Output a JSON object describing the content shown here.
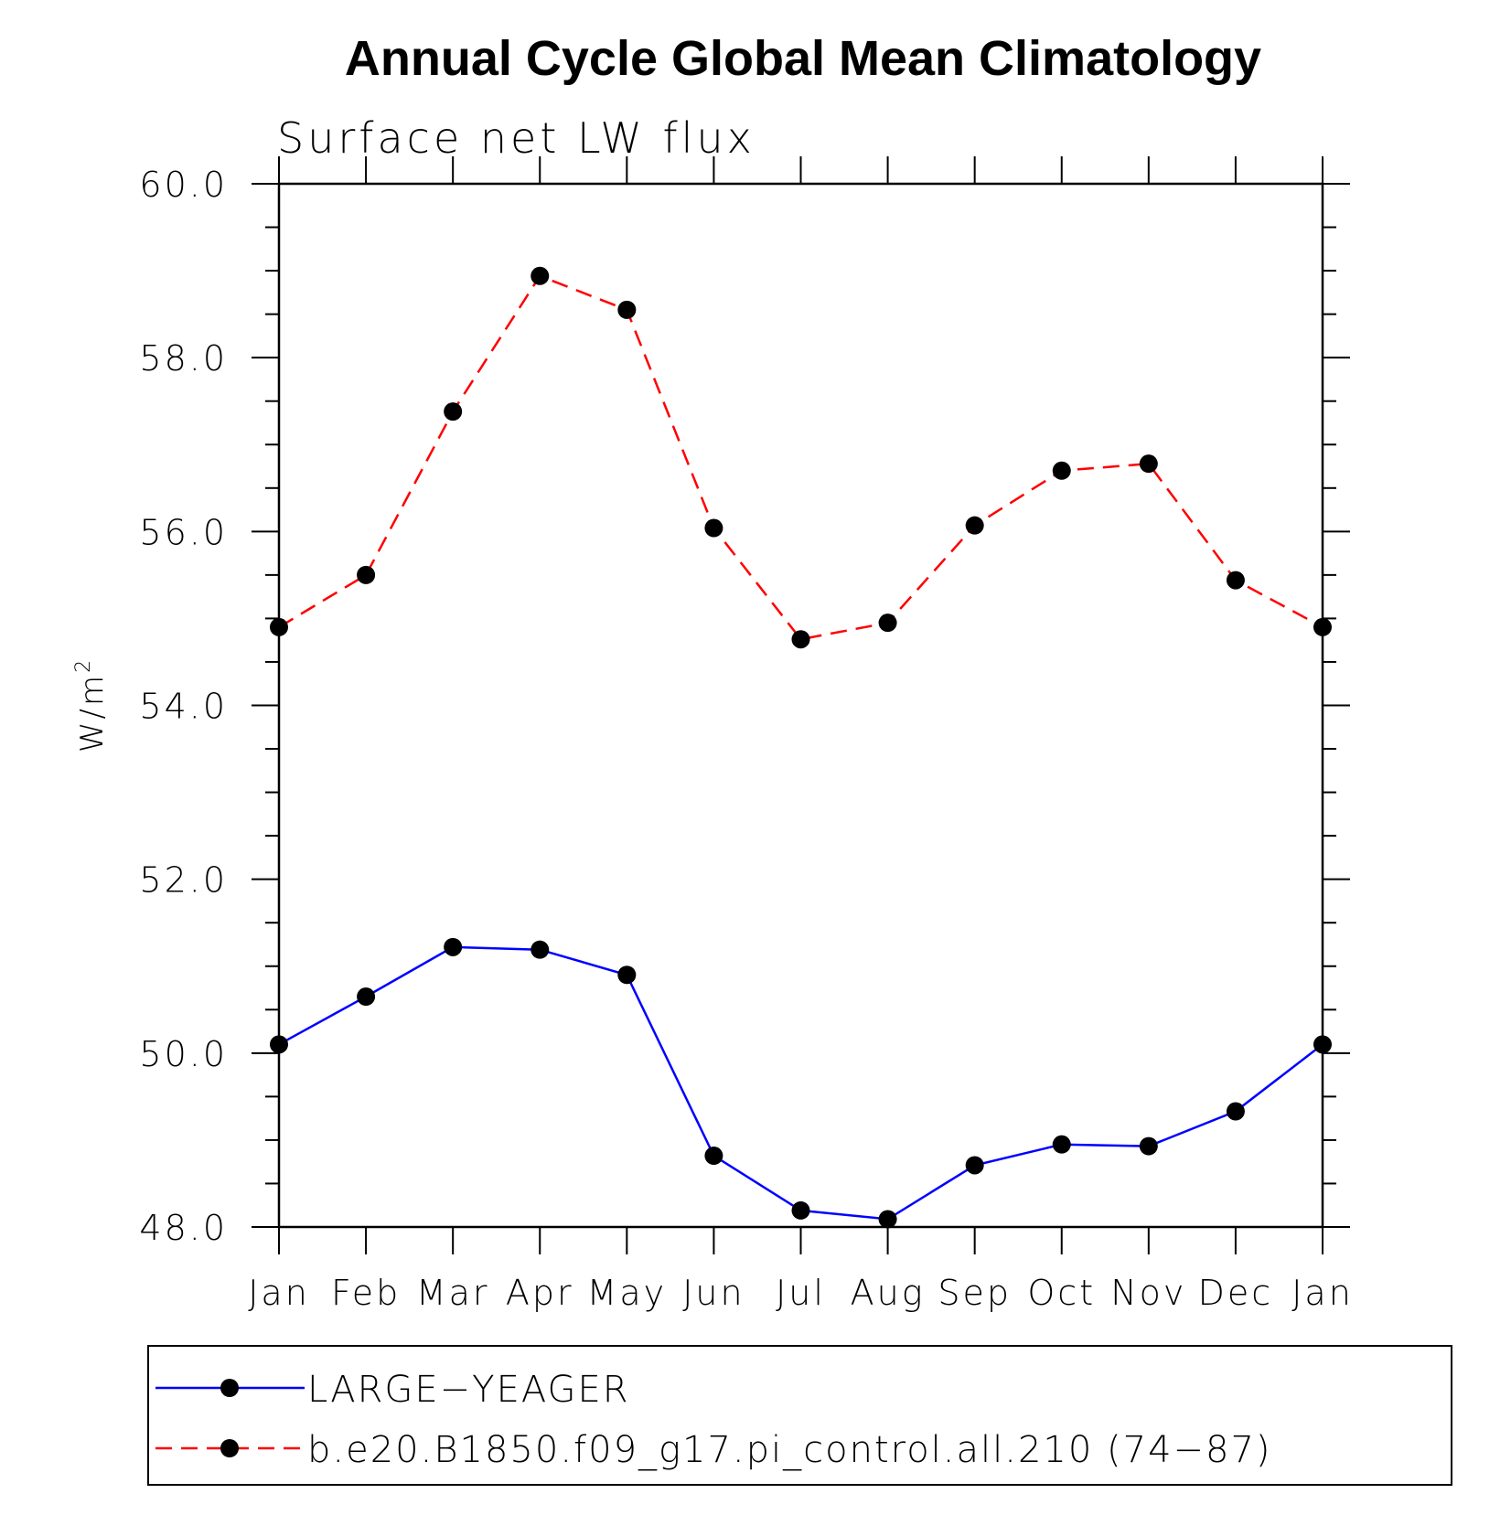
{
  "chart_data": {
    "type": "line",
    "title": "Annual Cycle Global Mean Climatology",
    "subtitle": "Surface net LW flux",
    "ylabel": "W/m",
    "ylabel_superscript": "2",
    "ylim": [
      48.0,
      60.0
    ],
    "yticks": [
      "48.0",
      "50.0",
      "52.0",
      "54.0",
      "56.0",
      "58.0",
      "60.0"
    ],
    "categories": [
      "Jan",
      "Feb",
      "Mar",
      "Apr",
      "May",
      "Jun",
      "Jul",
      "Aug",
      "Sep",
      "Oct",
      "Nov",
      "Dec",
      "Jan"
    ],
    "series": [
      {
        "name": "LARGE−YEAGER",
        "color": "#0000ff",
        "dash": "solid",
        "values": [
          50.1,
          50.65,
          51.22,
          51.19,
          50.9,
          48.82,
          48.19,
          48.09,
          48.71,
          48.95,
          48.93,
          49.33,
          50.1
        ]
      },
      {
        "name": "b.e20.B1850.f09_g17.pi_control.all.210 (74−87)",
        "color": "#ff0000",
        "dash": "dashed",
        "values": [
          54.9,
          55.5,
          57.38,
          58.94,
          58.55,
          56.04,
          54.76,
          54.95,
          56.07,
          56.7,
          56.78,
          55.44,
          54.9
        ]
      }
    ],
    "marker_color": "#000000",
    "legend_position": "bottom",
    "grid": false
  }
}
